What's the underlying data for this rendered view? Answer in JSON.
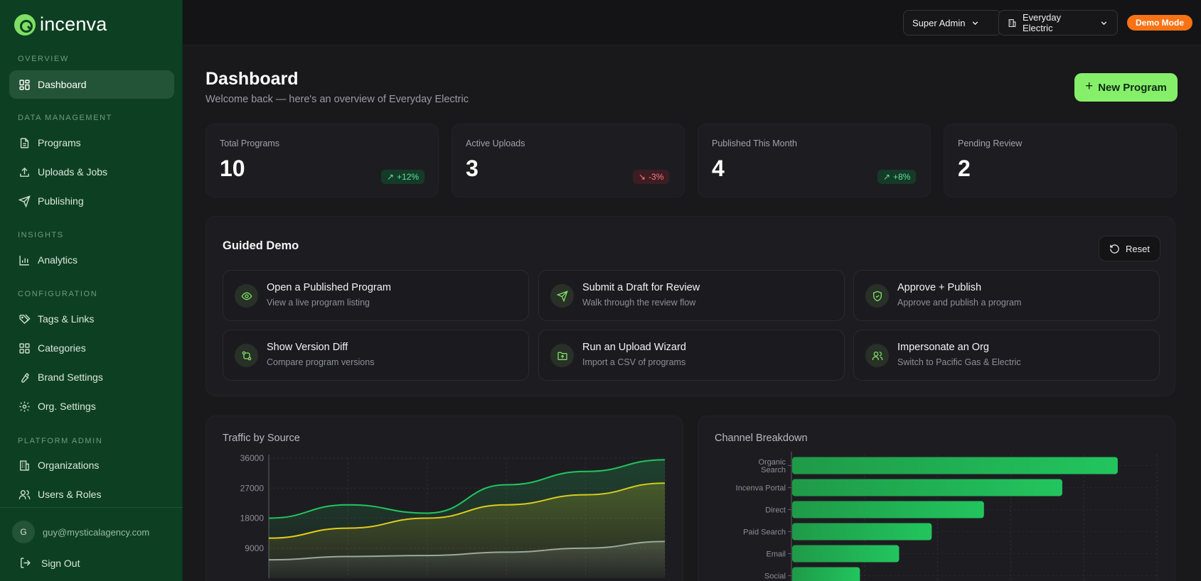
{
  "app": {
    "name": "incenva"
  },
  "sidebar": {
    "sections": {
      "overview": "OVERVIEW",
      "data_management": "DATA MANAGEMENT",
      "insights": "INSIGHTS",
      "configuration": "CONFIGURATION",
      "platform_admin": "PLATFORM ADMIN"
    },
    "items": {
      "dashboard": "Dashboard",
      "programs": "Programs",
      "uploads": "Uploads & Jobs",
      "publishing": "Publishing",
      "analytics": "Analytics",
      "tags": "Tags & Links",
      "categories": "Categories",
      "brand": "Brand Settings",
      "org_settings": "Org. Settings",
      "organizations": "Organizations",
      "users": "Users & Roles"
    },
    "user": {
      "initial": "G",
      "email": "guy@mysticalagency.com"
    },
    "sign_out": "Sign Out"
  },
  "topbar": {
    "role": "Super Admin",
    "org": "Everyday Electric",
    "demo_badge": "Demo Mode"
  },
  "header": {
    "title": "Dashboard",
    "subtitle": "Welcome back — here's an overview of Everyday Electric",
    "new_program": "New Program"
  },
  "stats": [
    {
      "label": "Total Programs",
      "value": "10",
      "delta": "+12%",
      "trend": "up"
    },
    {
      "label": "Active Uploads",
      "value": "3",
      "delta": "-3%",
      "trend": "down"
    },
    {
      "label": "Published This Month",
      "value": "4",
      "delta": "+8%",
      "trend": "up"
    },
    {
      "label": "Pending Review",
      "value": "2"
    }
  ],
  "guided_demo": {
    "title": "Guided Demo",
    "reset": "Reset",
    "cards": [
      {
        "title": "Open a Published Program",
        "desc": "View a live program listing",
        "icon": "eye-icon"
      },
      {
        "title": "Submit a Draft for Review",
        "desc": "Walk through the review flow",
        "icon": "send-icon"
      },
      {
        "title": "Approve + Publish",
        "desc": "Approve and publish a program",
        "icon": "shield-check-icon"
      },
      {
        "title": "Show Version Diff",
        "desc": "Compare program versions",
        "icon": "git-compare-icon"
      },
      {
        "title": "Run an Upload Wizard",
        "desc": "Import a CSV of programs",
        "icon": "folder-upload-icon"
      },
      {
        "title": "Impersonate an Org",
        "desc": "Switch to Pacific Gas & Electric",
        "icon": "users-icon"
      }
    ]
  },
  "colors": {
    "accent": "#86ef6a",
    "sidebar": "#0d4022",
    "demo": "#f97316",
    "series_green": "#22c55e",
    "series_yellow": "#facc15",
    "series_gray": "#9ca3af"
  },
  "chart_data": [
    {
      "type": "area",
      "title": "Traffic by Source",
      "ylim": [
        0,
        36000
      ],
      "yticks": [
        "36000",
        "27000",
        "18000",
        "9000"
      ],
      "grid": true,
      "series": [
        {
          "values": [
            18000,
            22000,
            19500,
            28000,
            32000,
            35500
          ],
          "color": "#22c55e"
        },
        {
          "values": [
            12000,
            15000,
            18000,
            22000,
            25000,
            28500
          ],
          "color": "#facc15"
        },
        {
          "values": [
            5500,
            6500,
            6800,
            7800,
            9000,
            11000
          ],
          "color": "#9ca3af"
        }
      ]
    },
    {
      "type": "bar",
      "title": "Channel Breakdown",
      "orientation": "horizontal",
      "grid": true,
      "categories": [
        "Organic Search",
        "Incenva Portal",
        "Direct",
        "Paid Search",
        "Email",
        "Social"
      ],
      "category_lines": [
        [
          "Organic",
          "Search"
        ],
        [
          "Incenva Portal"
        ],
        [
          "Direct"
        ],
        [
          "Paid Search"
        ],
        [
          "Email"
        ],
        [
          "Social"
        ]
      ],
      "values": [
        100,
        83,
        59,
        43,
        33,
        21
      ],
      "xlim": [
        0,
        112
      ]
    }
  ]
}
